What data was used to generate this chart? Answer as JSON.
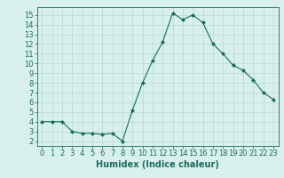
{
  "x": [
    0,
    1,
    2,
    3,
    4,
    5,
    6,
    7,
    8,
    9,
    10,
    11,
    12,
    13,
    14,
    15,
    16,
    17,
    18,
    19,
    20,
    21,
    22,
    23
  ],
  "y": [
    4.0,
    4.0,
    4.0,
    3.0,
    2.8,
    2.8,
    2.7,
    2.8,
    2.0,
    5.2,
    8.0,
    10.3,
    12.2,
    15.2,
    14.5,
    15.0,
    14.2,
    12.0,
    11.0,
    9.8,
    9.3,
    8.3,
    7.0,
    6.3
  ],
  "line_color": "#1a6b5e",
  "marker": "D",
  "marker_size": 2.0,
  "bg_color": "#d8f0ec",
  "grid_color": "#b8d8d2",
  "xlabel": "Humidex (Indice chaleur)",
  "ylim": [
    1.5,
    15.8
  ],
  "xlim": [
    -0.5,
    23.5
  ],
  "yticks": [
    2,
    3,
    4,
    5,
    6,
    7,
    8,
    9,
    10,
    11,
    12,
    13,
    14,
    15
  ],
  "xticks": [
    0,
    1,
    2,
    3,
    4,
    5,
    6,
    7,
    8,
    9,
    10,
    11,
    12,
    13,
    14,
    15,
    16,
    17,
    18,
    19,
    20,
    21,
    22,
    23
  ],
  "tick_color": "#1a6b5e",
  "axis_color": "#1a6b5e",
  "xlabel_fontsize": 7,
  "tick_fontsize": 6
}
